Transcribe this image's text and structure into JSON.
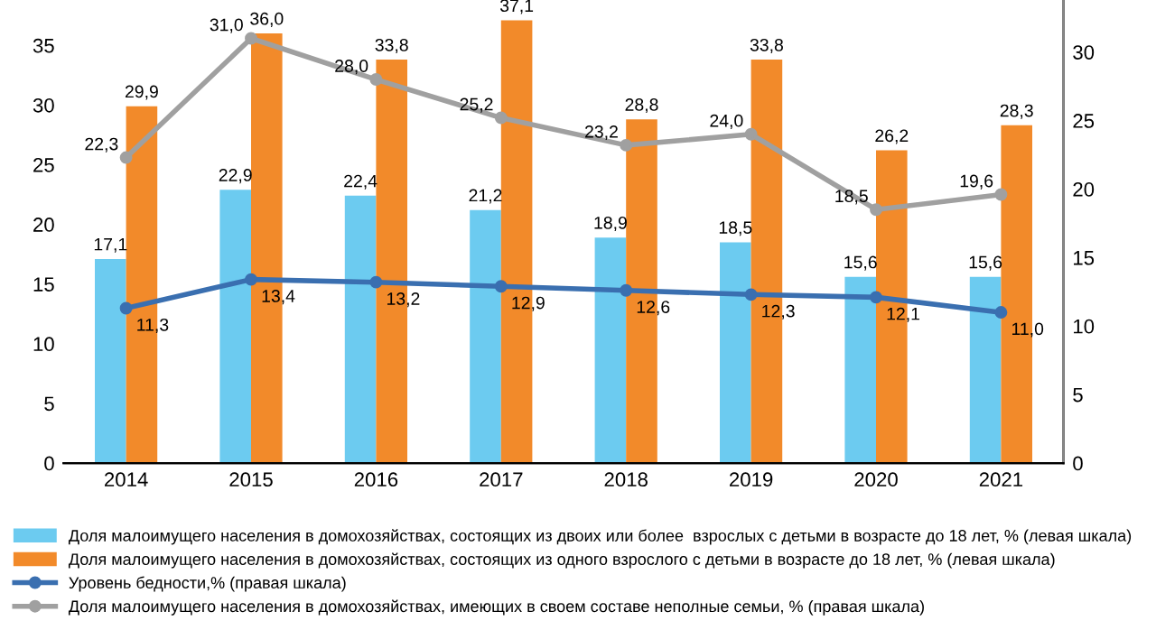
{
  "chart_data": {
    "type": "bar",
    "categories": [
      "2014",
      "2015",
      "2016",
      "2017",
      "2018",
      "2019",
      "2020",
      "2021"
    ],
    "series": [
      {
        "name": "Доля малоимущего населения в домохозяйствах, состоящих из двоих или более  взрослых с детьми в возрасте до 18 лет, % (левая шкала)",
        "color": "#6ccbf0",
        "values": [
          17.1,
          22.9,
          22.4,
          21.2,
          18.9,
          18.5,
          15.6,
          15.6
        ],
        "value_labels": [
          "17,1",
          "22,9",
          "22,4",
          "21,2",
          "18,9",
          "18,5",
          "15,6",
          "15,6"
        ]
      },
      {
        "name": "Доля малоимущего населения в домохозяйствах, состоящих из одного взрослого с детьми в возрасте до 18 лет, % (левая шкала)",
        "color": "#f28a2a",
        "values": [
          29.9,
          36.0,
          33.8,
          37.1,
          28.8,
          33.8,
          26.2,
          28.3
        ],
        "value_labels": [
          "29,9",
          "36,0",
          "33,8",
          "37,1",
          "28,8",
          "33,8",
          "26,2",
          "28,3"
        ]
      },
      {
        "name": "Уровень бедности,% (правая шкала)",
        "type": "line",
        "axis": "y2",
        "marker": "circle",
        "color": "#3a6fb0",
        "values": [
          11.3,
          13.4,
          13.2,
          12.9,
          12.6,
          12.3,
          12.1,
          11.0
        ],
        "value_labels": [
          "11,3",
          "13,4",
          "13,2",
          "12,9",
          "12,6",
          "12,3",
          "12,1",
          "11,0"
        ]
      },
      {
        "name": "Доля малоимущего населения в домохозяйствах, имеющих в своем составе неполные семьи, % (правая шкала)",
        "type": "line",
        "axis": "y2",
        "marker": "circle",
        "color": "#a0a0a0",
        "values": [
          22.3,
          31.0,
          28.0,
          25.2,
          23.2,
          24.0,
          18.5,
          19.6
        ],
        "value_labels": [
          "22,3",
          "31,0",
          "28,0",
          "25,2",
          "23,2",
          "24,0",
          "18,5",
          "19,6"
        ]
      }
    ],
    "ylim": [
      0,
      38.8
    ],
    "yticks": [
      0,
      5,
      10,
      15,
      20,
      25,
      30,
      35
    ],
    "y2lim": [
      0,
      33.8
    ],
    "y2ticks": [
      0,
      5,
      10,
      15,
      20,
      25,
      30
    ],
    "grid": false,
    "legend": "bottom"
  }
}
